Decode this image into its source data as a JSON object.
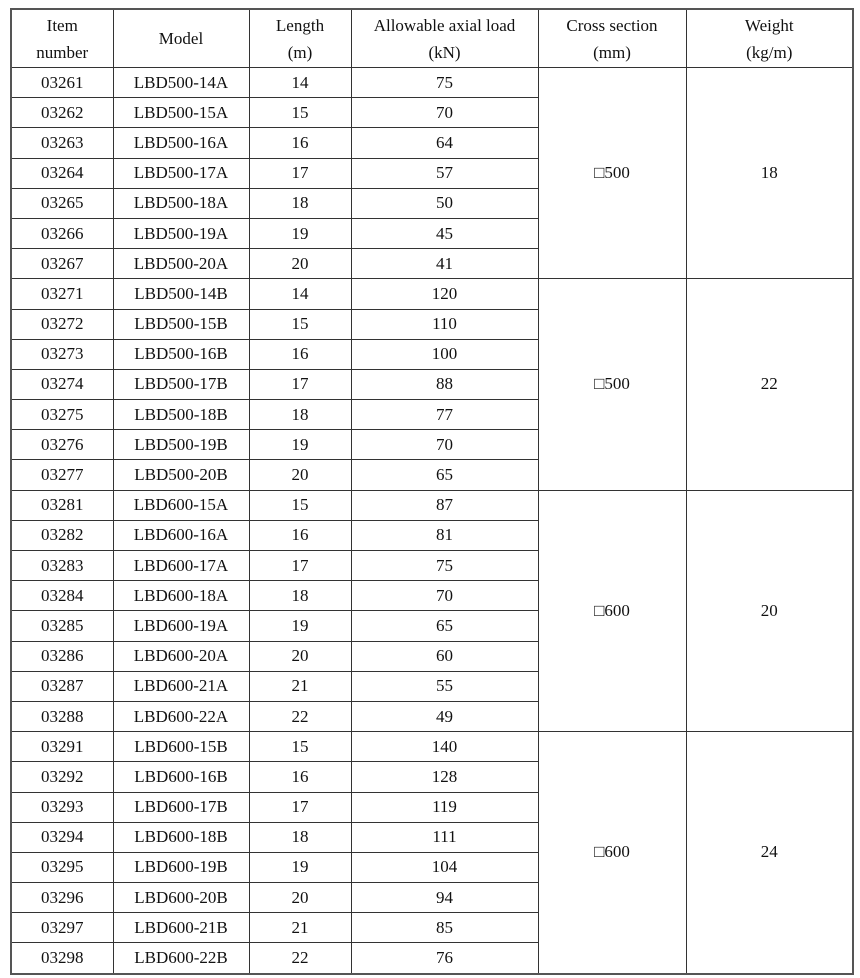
{
  "headers": [
    [
      "Item",
      "number"
    ],
    [
      "Model"
    ],
    [
      "Length",
      "(m)"
    ],
    [
      "Allowable axial load",
      "(kN)"
    ],
    [
      "Cross section",
      "(mm)"
    ],
    [
      "Weight",
      "(kg/m)"
    ]
  ],
  "groups": [
    {
      "cross_section": "□500",
      "weight": "18",
      "rows": [
        [
          "03261",
          "LBD500-14A",
          "14",
          "75"
        ],
        [
          "03262",
          "LBD500-15A",
          "15",
          "70"
        ],
        [
          "03263",
          "LBD500-16A",
          "16",
          "64"
        ],
        [
          "03264",
          "LBD500-17A",
          "17",
          "57"
        ],
        [
          "03265",
          "LBD500-18A",
          "18",
          "50"
        ],
        [
          "03266",
          "LBD500-19A",
          "19",
          "45"
        ],
        [
          "03267",
          "LBD500-20A",
          "20",
          "41"
        ]
      ]
    },
    {
      "cross_section": "□500",
      "weight": "22",
      "rows": [
        [
          "03271",
          "LBD500-14B",
          "14",
          "120"
        ],
        [
          "03272",
          "LBD500-15B",
          "15",
          "110"
        ],
        [
          "03273",
          "LBD500-16B",
          "16",
          "100"
        ],
        [
          "03274",
          "LBD500-17B",
          "17",
          "88"
        ],
        [
          "03275",
          "LBD500-18B",
          "18",
          "77"
        ],
        [
          "03276",
          "LBD500-19B",
          "19",
          "70"
        ],
        [
          "03277",
          "LBD500-20B",
          "20",
          "65"
        ]
      ]
    },
    {
      "cross_section": "□600",
      "weight": "20",
      "rows": [
        [
          "03281",
          "LBD600-15A",
          "15",
          "87"
        ],
        [
          "03282",
          "LBD600-16A",
          "16",
          "81"
        ],
        [
          "03283",
          "LBD600-17A",
          "17",
          "75"
        ],
        [
          "03284",
          "LBD600-18A",
          "18",
          "70"
        ],
        [
          "03285",
          "LBD600-19A",
          "19",
          "65"
        ],
        [
          "03286",
          "LBD600-20A",
          "20",
          "60"
        ],
        [
          "03287",
          "LBD600-21A",
          "21",
          "55"
        ],
        [
          "03288",
          "LBD600-22A",
          "22",
          "49"
        ]
      ]
    },
    {
      "cross_section": "□600",
      "weight": "24",
      "rows": [
        [
          "03291",
          "LBD600-15B",
          "15",
          "140"
        ],
        [
          "03292",
          "LBD600-16B",
          "16",
          "128"
        ],
        [
          "03293",
          "LBD600-17B",
          "17",
          "119"
        ],
        [
          "03294",
          "LBD600-18B",
          "18",
          "111"
        ],
        [
          "03295",
          "LBD600-19B",
          "19",
          "104"
        ],
        [
          "03296",
          "LBD600-20B",
          "20",
          "94"
        ],
        [
          "03297",
          "LBD600-21B",
          "21",
          "85"
        ],
        [
          "03298",
          "LBD600-22B",
          "22",
          "76"
        ]
      ]
    }
  ]
}
